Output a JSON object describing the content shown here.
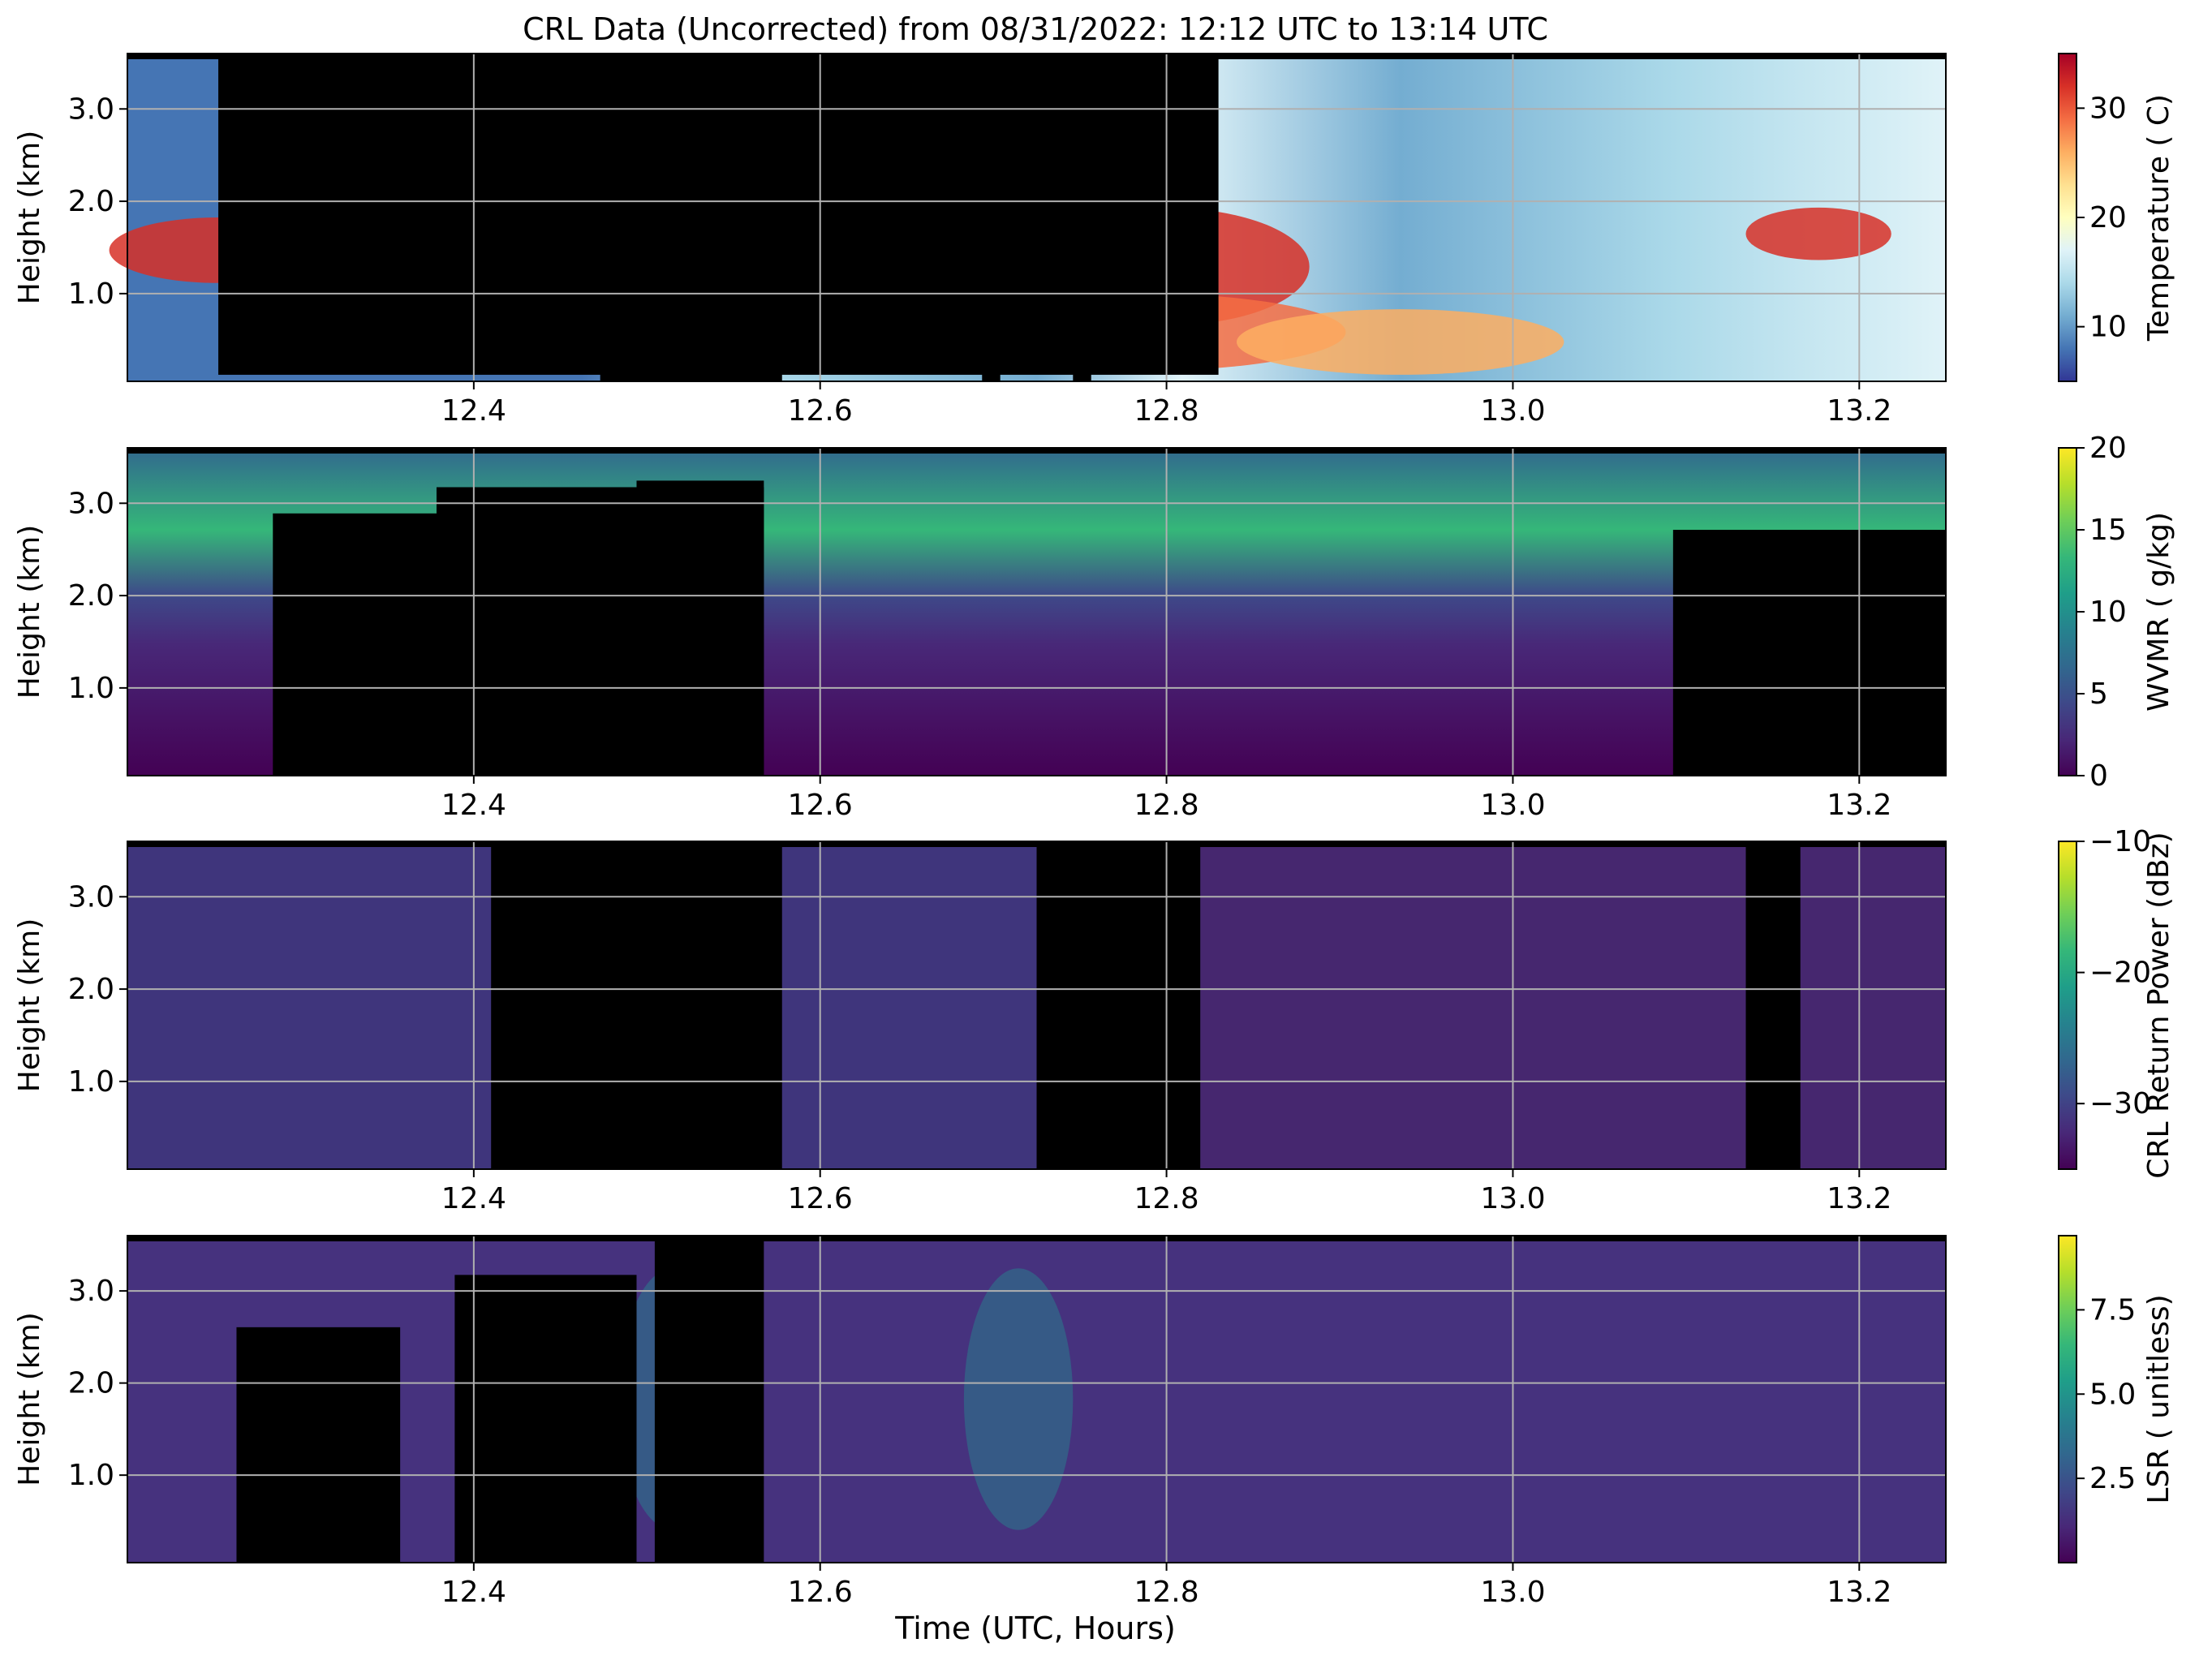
{
  "figure": {
    "title": "CRL Data (Uncorrected) from 08/31/2022: 12:12 UTC to 13:14 UTC",
    "xlabel": "Time (UTC, Hours)"
  },
  "chart_data": [
    {
      "type": "heatmap",
      "ylabel": "Height (km)",
      "colorbar_label": "Temperature ( C)",
      "colormap": "RdYlBu_r",
      "clim": [
        5,
        35
      ],
      "xlim": [
        12.2,
        13.25
      ],
      "ylim": [
        0.05,
        3.6
      ],
      "x_ticks": [
        "12.4",
        "12.6",
        "12.8",
        "13.0",
        "13.2"
      ],
      "y_ticks": [
        "1.0",
        "2.0",
        "3.0"
      ],
      "colorbar_ticks": [
        "10",
        "20",
        "30"
      ],
      "grid": true,
      "masked_color": "#000000"
    },
    {
      "type": "heatmap",
      "ylabel": "Height (km)",
      "colorbar_label": "WVMR ( g/kg)",
      "colormap": "viridis",
      "clim": [
        0,
        20
      ],
      "xlim": [
        12.2,
        13.25
      ],
      "ylim": [
        0.05,
        3.6
      ],
      "x_ticks": [
        "12.4",
        "12.6",
        "12.8",
        "13.0",
        "13.2"
      ],
      "y_ticks": [
        "1.0",
        "2.0",
        "3.0"
      ],
      "colorbar_ticks": [
        "0",
        "5",
        "10",
        "15",
        "20"
      ],
      "grid": true,
      "masked_color": "#000000"
    },
    {
      "type": "heatmap",
      "ylabel": "Height (km)",
      "colorbar_label": "CRL Return Power (dBz)",
      "colormap": "viridis",
      "clim": [
        -35,
        -10
      ],
      "xlim": [
        12.2,
        13.25
      ],
      "ylim": [
        0.05,
        3.6
      ],
      "x_ticks": [
        "12.4",
        "12.6",
        "12.8",
        "13.0",
        "13.2"
      ],
      "y_ticks": [
        "1.0",
        "2.0",
        "3.0"
      ],
      "colorbar_ticks": [
        "−10",
        "−20",
        "−30"
      ],
      "grid": true,
      "masked_color": "#000000"
    },
    {
      "type": "heatmap",
      "ylabel": "Height (km)",
      "colorbar_label": "LSR ( unitless)",
      "colormap": "viridis",
      "clim": [
        0,
        9.7
      ],
      "xlim": [
        12.2,
        13.25
      ],
      "ylim": [
        0.05,
        3.6
      ],
      "x_ticks": [
        "12.4",
        "12.6",
        "12.8",
        "13.0",
        "13.2"
      ],
      "y_ticks": [
        "1.0",
        "2.0",
        "3.0"
      ],
      "colorbar_ticks": [
        "2.5",
        "5.0",
        "7.5"
      ],
      "grid": true,
      "masked_color": "#000000"
    }
  ]
}
